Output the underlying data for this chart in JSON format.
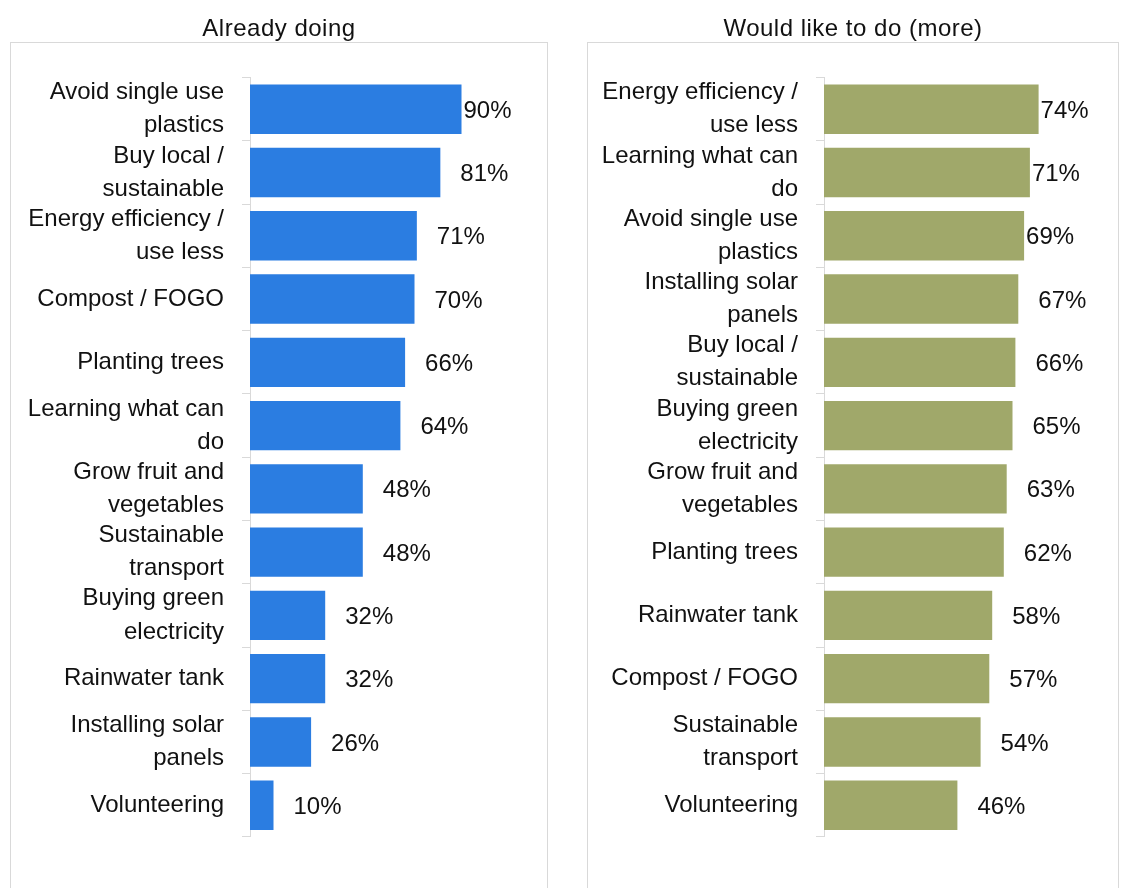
{
  "chart_data": [
    {
      "type": "bar",
      "orientation": "horizontal",
      "title": "Already doing",
      "legend": false,
      "color": "#2b7de1",
      "categories": [
        "Avoid single use plastics",
        "Buy local / sustainable",
        "Energy efficiency / use less",
        "Compost / FOGO",
        "Planting trees",
        "Learning what can do",
        "Grow fruit and vegetables",
        "Sustainable transport",
        "Buying green electricity",
        "Rainwater tank",
        "Installing solar panels",
        "Volunteering"
      ],
      "values": [
        90,
        81,
        71,
        70,
        66,
        64,
        48,
        48,
        32,
        32,
        26,
        10
      ],
      "value_labels": [
        "90%",
        "81%",
        "71%",
        "70%",
        "66%",
        "64%",
        "48%",
        "48%",
        "32%",
        "32%",
        "26%",
        "10%"
      ]
    },
    {
      "type": "bar",
      "orientation": "horizontal",
      "title": "Would like to do (more)",
      "legend": false,
      "color": "#a0a86a",
      "categories": [
        "Energy efficiency / use less",
        "Learning what can do",
        "Avoid single use plastics",
        "Installing solar panels",
        "Buy local / sustainable",
        "Buying green electricity",
        "Grow fruit and vegetables",
        "Planting trees",
        "Rainwater tank",
        "Compost / FOGO",
        "Sustainable transport",
        "Volunteering"
      ],
      "values": [
        74,
        71,
        69,
        67,
        66,
        65,
        63,
        62,
        58,
        57,
        54,
        46
      ],
      "value_labels": [
        "74%",
        "71%",
        "69%",
        "67%",
        "66%",
        "65%",
        "63%",
        "62%",
        "58%",
        "57%",
        "54%",
        "46%"
      ]
    }
  ]
}
